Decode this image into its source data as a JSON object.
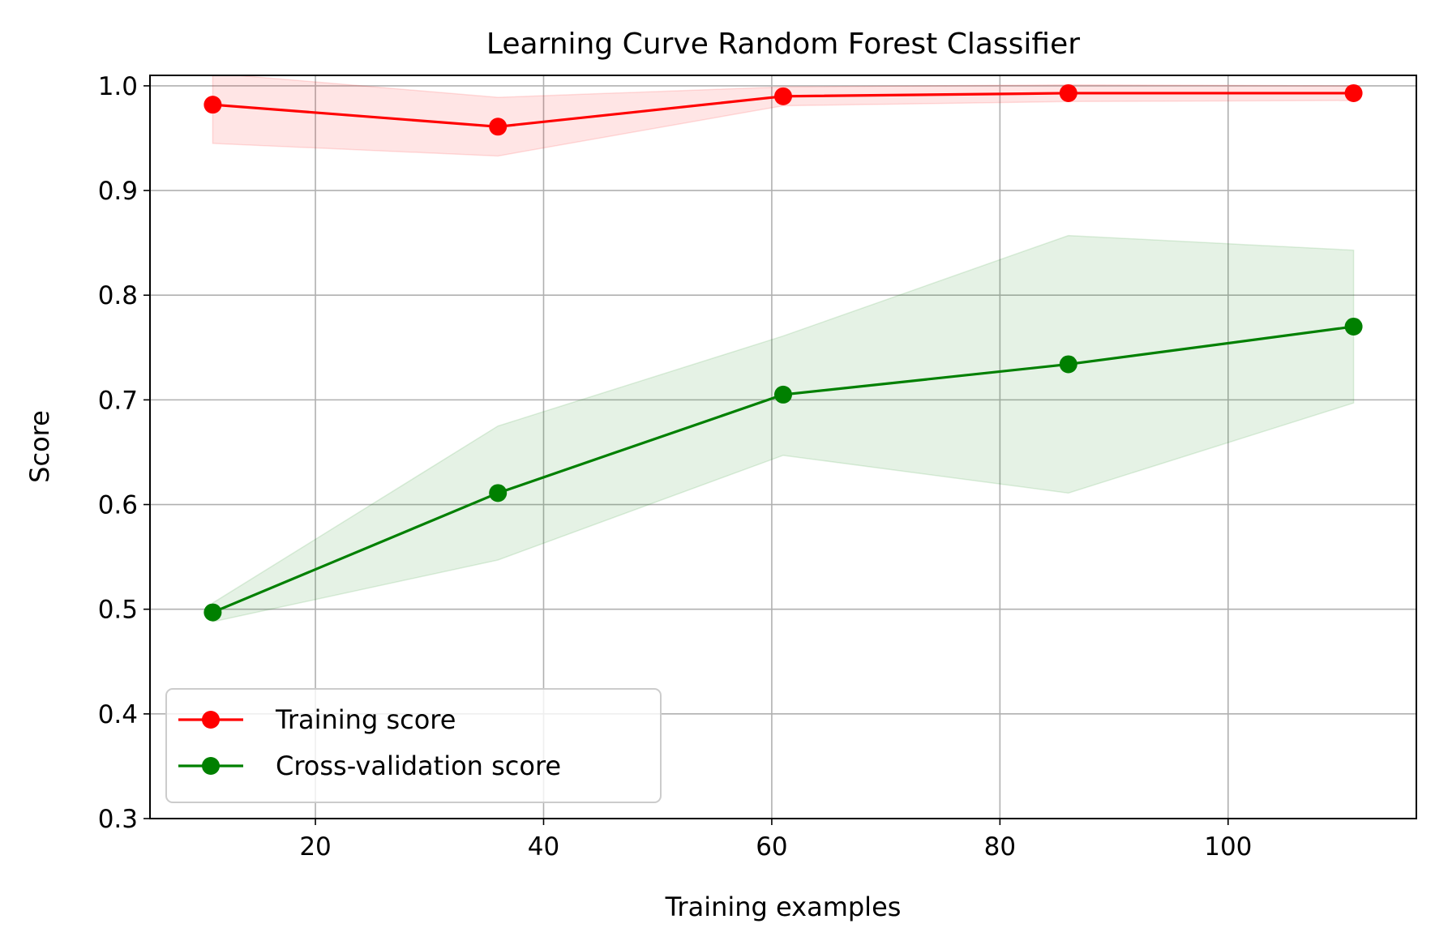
{
  "chart_data": {
    "type": "line",
    "title": "Learning Curve Random Forest Classifier",
    "xlabel": "Training examples",
    "ylabel": "Score",
    "xlim": [
      5.5,
      116.5
    ],
    "ylim": [
      0.3,
      1.01
    ],
    "xticks": [
      20,
      40,
      60,
      80,
      100
    ],
    "xtick_labels": [
      "20",
      "40",
      "60",
      "80",
      "100"
    ],
    "yticks": [
      0.3,
      0.4,
      0.5,
      0.6,
      0.7,
      0.8,
      0.9,
      1.0
    ],
    "ytick_labels": [
      "0.3",
      "0.4",
      "0.5",
      "0.6",
      "0.7",
      "0.8",
      "0.9",
      "1.0"
    ],
    "grid": true,
    "legend_position": "lower-left",
    "x": [
      11,
      36,
      61,
      86,
      111
    ],
    "series": [
      {
        "name": "Training score",
        "color": "#ff0000",
        "band_color": "#ff0000",
        "values": [
          0.982,
          0.961,
          0.99,
          0.993,
          0.993
        ],
        "band_lower": [
          0.945,
          0.933,
          0.981,
          0.985,
          0.986
        ],
        "band_upper": [
          1.012,
          0.989,
          0.999,
          1.001,
          1.0
        ]
      },
      {
        "name": "Cross-validation score",
        "color": "#008000",
        "band_color": "#008000",
        "values": [
          0.497,
          0.611,
          0.705,
          0.734,
          0.77
        ],
        "band_lower": [
          0.488,
          0.547,
          0.647,
          0.611,
          0.697
        ],
        "band_upper": [
          0.506,
          0.675,
          0.761,
          0.857,
          0.843
        ]
      }
    ]
  }
}
